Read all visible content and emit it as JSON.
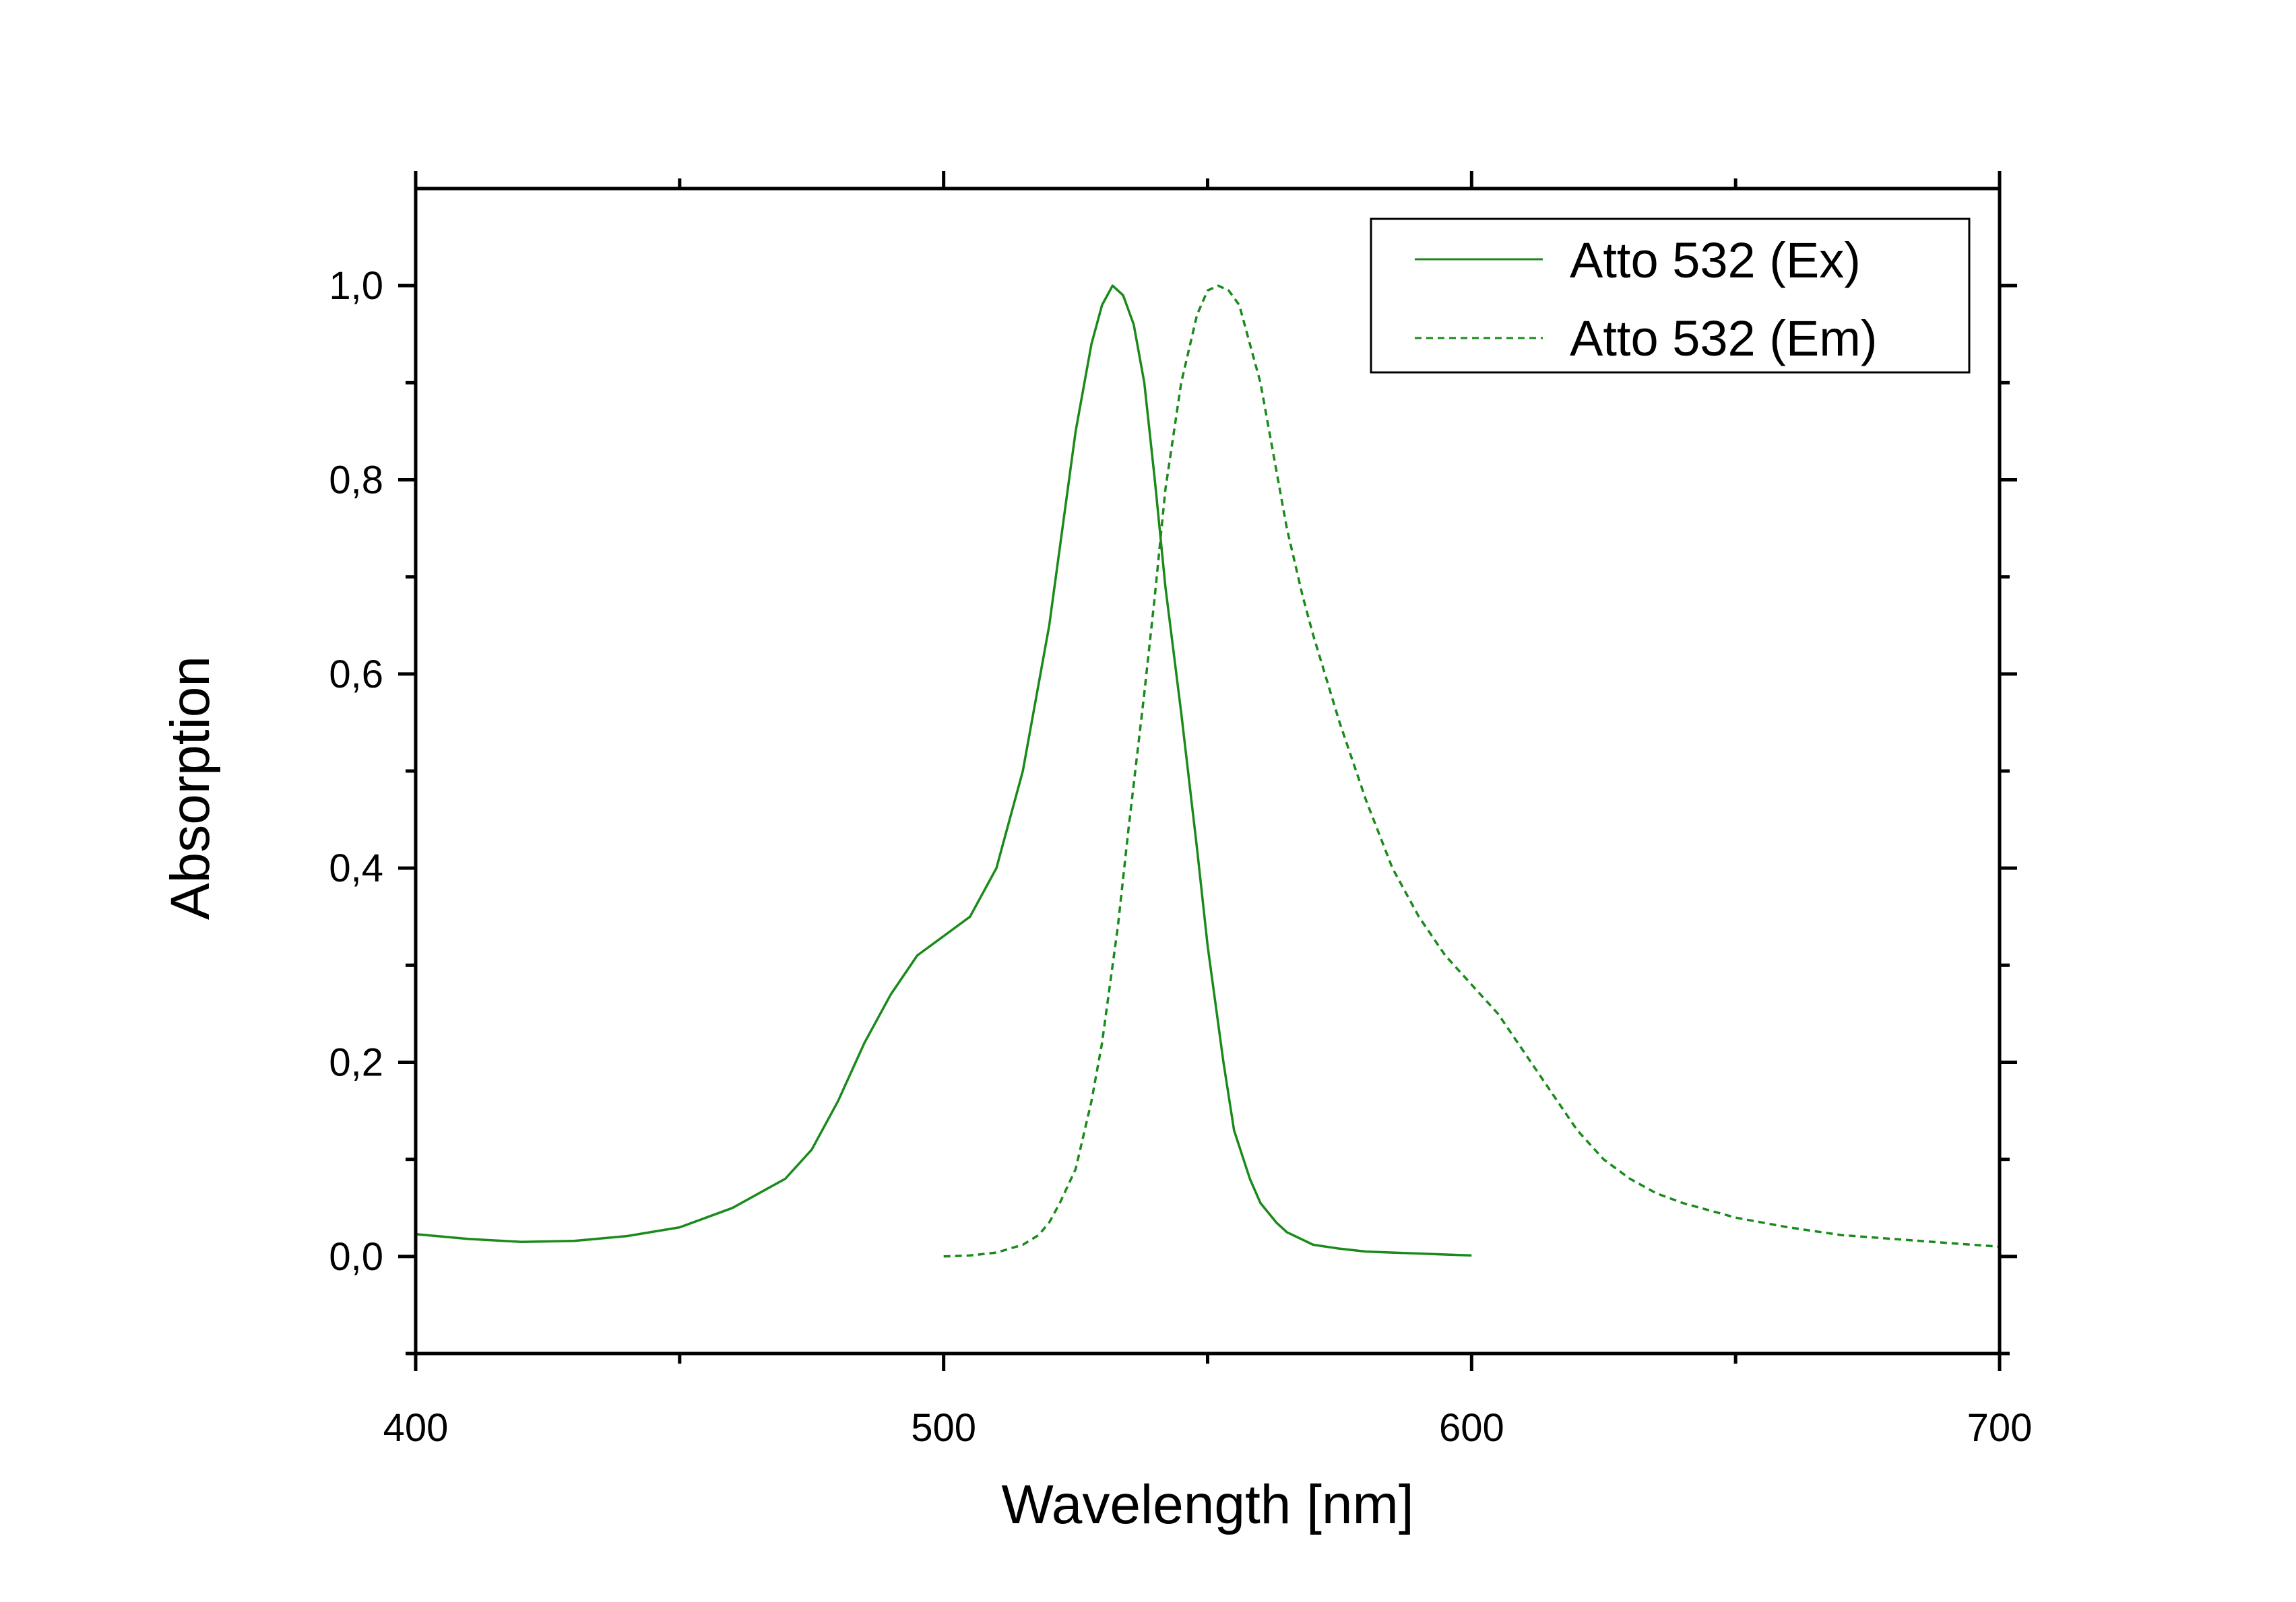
{
  "chart_data": {
    "type": "line",
    "xlabel": "Wavelength [nm]",
    "ylabel": "Absorption",
    "xlim": [
      400,
      700
    ],
    "ylim": [
      -0.1,
      1.1
    ],
    "x_ticks": [
      400,
      500,
      600,
      700
    ],
    "x_tick_labels": [
      "400",
      "500",
      "600",
      "700"
    ],
    "x_minor_ticks": [
      450,
      550,
      650
    ],
    "y_ticks": [
      0.0,
      0.2,
      0.4,
      0.6,
      0.8,
      1.0
    ],
    "y_tick_labels": [
      "0,0",
      "0,2",
      "0,4",
      "0,6",
      "0,8",
      "1,0"
    ],
    "y_minor_ticks": [
      -0.1,
      0.1,
      0.3,
      0.5,
      0.7,
      0.9
    ],
    "grid": false,
    "legend_position": "top-right",
    "line_color": "#1a8a1a",
    "series": [
      {
        "name": "Atto 532 (Ex)",
        "style": "solid",
        "x": [
          400,
          410,
          420,
          430,
          440,
          450,
          460,
          470,
          475,
          480,
          485,
          490,
          495,
          500,
          505,
          510,
          515,
          520,
          525,
          528,
          530,
          532,
          534,
          536,
          538,
          540,
          542,
          545,
          548,
          550,
          553,
          555,
          558,
          560,
          563,
          565,
          570,
          575,
          580,
          585,
          590,
          595,
          600
        ],
        "y": [
          0.023,
          0.018,
          0.015,
          0.016,
          0.021,
          0.03,
          0.05,
          0.08,
          0.11,
          0.16,
          0.22,
          0.27,
          0.31,
          0.33,
          0.35,
          0.4,
          0.5,
          0.65,
          0.85,
          0.94,
          0.98,
          1.0,
          0.99,
          0.96,
          0.9,
          0.8,
          0.69,
          0.56,
          0.42,
          0.32,
          0.2,
          0.13,
          0.08,
          0.055,
          0.035,
          0.025,
          0.012,
          0.008,
          0.005,
          0.004,
          0.003,
          0.002,
          0.001
        ]
      },
      {
        "name": "Atto 532 (Em)",
        "style": "dashed",
        "x": [
          500,
          505,
          510,
          515,
          518,
          520,
          522,
          525,
          528,
          530,
          533,
          535,
          538,
          540,
          542,
          545,
          548,
          550,
          552,
          554,
          556,
          558,
          560,
          563,
          565,
          568,
          570,
          575,
          580,
          585,
          590,
          595,
          600,
          605,
          610,
          615,
          620,
          625,
          630,
          635,
          640,
          650,
          660,
          670,
          680,
          690,
          700
        ],
        "y": [
          0.0,
          0.001,
          0.004,
          0.012,
          0.022,
          0.035,
          0.055,
          0.09,
          0.16,
          0.22,
          0.34,
          0.44,
          0.58,
          0.68,
          0.79,
          0.9,
          0.97,
          0.995,
          1.0,
          0.995,
          0.98,
          0.94,
          0.9,
          0.81,
          0.75,
          0.68,
          0.64,
          0.55,
          0.47,
          0.4,
          0.35,
          0.31,
          0.28,
          0.25,
          0.21,
          0.17,
          0.13,
          0.1,
          0.08,
          0.065,
          0.055,
          0.04,
          0.03,
          0.022,
          0.018,
          0.014,
          0.01
        ]
      }
    ]
  }
}
